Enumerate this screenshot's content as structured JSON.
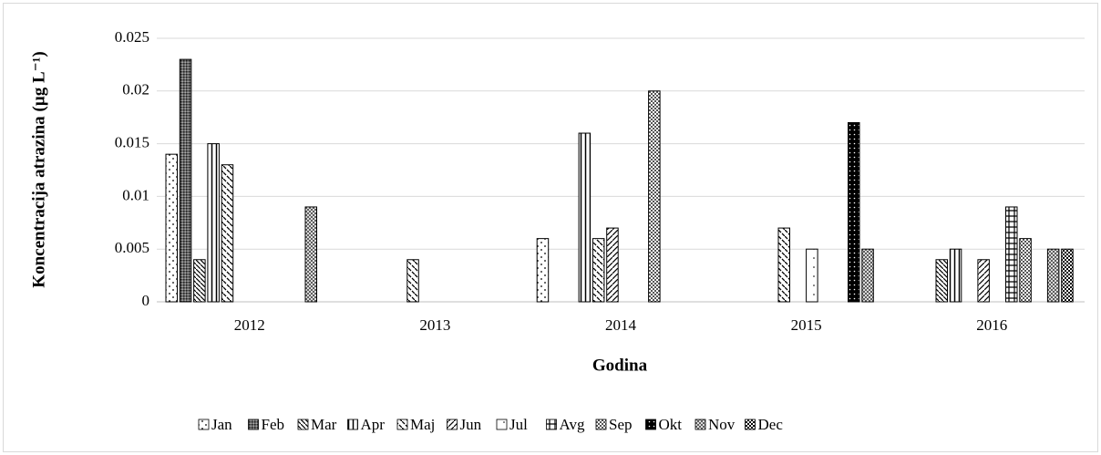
{
  "chart_data": {
    "type": "bar",
    "x_label": "Godina",
    "y_label": "Koncentracija atrazina (µg L⁻¹)",
    "categories": [
      "2012",
      "2013",
      "2014",
      "2015",
      "2016"
    ],
    "series": [
      {
        "name": "Jan",
        "values": [
          0.014,
          null,
          0.006,
          null,
          null
        ]
      },
      {
        "name": "Feb",
        "values": [
          0.023,
          null,
          null,
          null,
          null
        ]
      },
      {
        "name": "Mar",
        "values": [
          0.004,
          null,
          null,
          null,
          0.004
        ]
      },
      {
        "name": "Apr",
        "values": [
          0.015,
          null,
          0.016,
          null,
          0.005
        ]
      },
      {
        "name": "Maj",
        "values": [
          0.013,
          0.004,
          0.006,
          0.007,
          null
        ]
      },
      {
        "name": "Jun",
        "values": [
          null,
          null,
          0.007,
          null,
          0.004
        ]
      },
      {
        "name": "Jul",
        "values": [
          null,
          null,
          null,
          0.005,
          null
        ]
      },
      {
        "name": "Avg",
        "values": [
          null,
          null,
          null,
          null,
          0.009
        ]
      },
      {
        "name": "Sep",
        "values": [
          null,
          null,
          0.02,
          null,
          0.006
        ]
      },
      {
        "name": "Okt",
        "values": [
          null,
          null,
          null,
          0.017,
          null
        ]
      },
      {
        "name": "Nov",
        "values": [
          0.009,
          null,
          null,
          0.005,
          0.005
        ]
      },
      {
        "name": "Dec",
        "values": [
          null,
          null,
          null,
          null,
          0.005
        ]
      }
    ],
    "ylim": [
      0,
      0.025
    ],
    "yticks": [
      0,
      0.005,
      0.01,
      0.015,
      0.02,
      0.025
    ],
    "grid": true,
    "legend": "bottom"
  }
}
